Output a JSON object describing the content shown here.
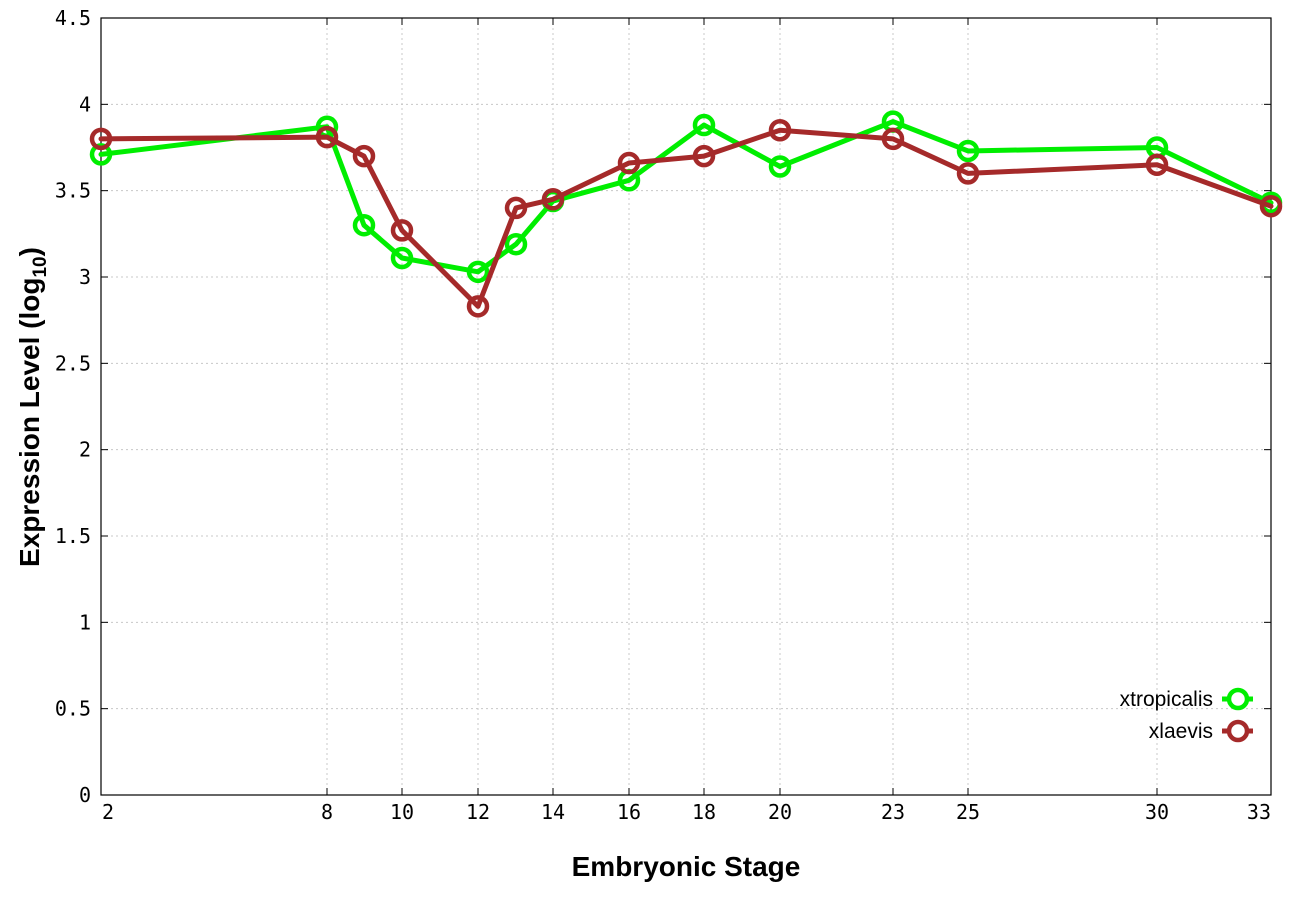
{
  "chart_data": {
    "type": "line",
    "xlabel": "Embryonic Stage",
    "ylabel_main": "Expression Level (log",
    "ylabel_sub": "10",
    "ylabel_close": ")",
    "ylim": [
      0,
      4.5
    ],
    "y_ticks": [
      "0",
      "0.5",
      "1",
      "1.5",
      "2",
      "2.5",
      "3",
      "3.5",
      "4",
      "4.5"
    ],
    "x_ticks": [
      "2",
      "8",
      "10",
      "12",
      "14",
      "16",
      "18",
      "20",
      "23",
      "25",
      "30",
      "33"
    ],
    "categories": [
      "2",
      "8",
      "9",
      "10",
      "12",
      "13",
      "14",
      "16",
      "18",
      "20",
      "23",
      "25",
      "30",
      "33"
    ],
    "grid": true,
    "legend_position": "bottom-right",
    "series": [
      {
        "name": "xtropicalis",
        "color": "#00ee00",
        "values": [
          3.71,
          3.87,
          3.3,
          3.11,
          3.03,
          3.19,
          3.44,
          3.56,
          3.88,
          3.64,
          3.9,
          3.73,
          3.75,
          3.43
        ]
      },
      {
        "name": "xlaevis",
        "color": "#a52a2a",
        "values": [
          3.8,
          3.81,
          3.7,
          3.27,
          2.83,
          3.4,
          3.45,
          3.66,
          3.7,
          3.85,
          3.8,
          3.6,
          3.65,
          3.41
        ]
      }
    ]
  }
}
